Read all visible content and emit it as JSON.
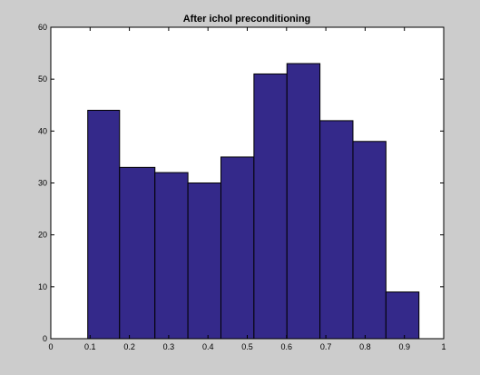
{
  "chart_data": {
    "type": "bar",
    "title": "After ichol preconditioning",
    "xlabel": "",
    "ylabel": "",
    "bin_edges": [
      0.094,
      0.1334,
      0.1728,
      0.2122,
      0.2516,
      0.291,
      0.3304,
      0.3698,
      0.4092,
      0.4486,
      0.488,
      0.5274,
      0.5668,
      0.6062,
      0.6456,
      0.685,
      0.7244,
      0.7638,
      0.8032,
      0.8426,
      0.882,
      0.9214,
      0.9608
    ],
    "bins": [
      {
        "x0": 0.094,
        "x1": 0.175,
        "count": 44
      },
      {
        "x0": 0.175,
        "x1": 0.265,
        "count": 33
      },
      {
        "x0": 0.265,
        "x1": 0.349,
        "count": 32
      },
      {
        "x0": 0.349,
        "x1": 0.433,
        "count": 30
      },
      {
        "x0": 0.433,
        "x1": 0.517,
        "count": 35
      },
      {
        "x0": 0.517,
        "x1": 0.601,
        "count": 51
      },
      {
        "x0": 0.601,
        "x1": 0.685,
        "count": 53
      },
      {
        "x0": 0.685,
        "x1": 0.769,
        "count": 42
      },
      {
        "x0": 0.769,
        "x1": 0.853,
        "count": 38
      },
      {
        "x0": 0.853,
        "x1": 0.937,
        "count": 9
      }
    ],
    "xlim": [
      0,
      1
    ],
    "ylim": [
      0,
      60
    ],
    "xticks": [
      0,
      0.1,
      0.2,
      0.3,
      0.4,
      0.5,
      0.6,
      0.7,
      0.8,
      0.9,
      1
    ],
    "xtick_labels": [
      "0",
      "0.1",
      "0.2",
      "0.3",
      "0.4",
      "0.5",
      "0.6",
      "0.7",
      "0.8",
      "0.9",
      "1"
    ],
    "yticks": [
      0,
      10,
      20,
      30,
      40,
      50,
      60
    ],
    "ytick_labels": [
      "0",
      "10",
      "20",
      "30",
      "40",
      "50",
      "60"
    ],
    "grid": false,
    "colors": {
      "bar_fill": "#34298a",
      "bar_edge": "#000000",
      "figure_background": "#cccccc",
      "axes_background": "#ffffff"
    }
  }
}
